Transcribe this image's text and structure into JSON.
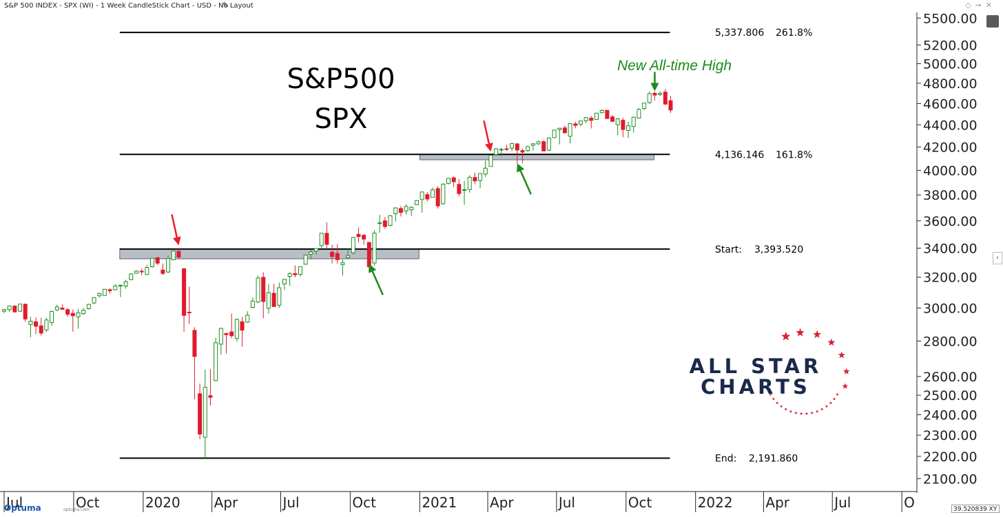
{
  "window": {
    "title": "S&P 500 INDEX - SPX (WI) - 1 Week CandleStick Chart - USD - No Layout",
    "edit_icon": "pencil-icon",
    "toolbar_icons": [
      "diamond-icon",
      "pin-icon",
      "close-icon"
    ]
  },
  "chart_data": {
    "type": "candlestick",
    "title": "S&P500",
    "subtitle": "SPX",
    "y_scale": "log",
    "ylim": [
      2050,
      5550
    ],
    "y_ticks": [
      2100,
      2200,
      2300,
      2400,
      2500,
      2600,
      2800,
      3000,
      3200,
      3400,
      3600,
      3800,
      4000,
      4200,
      4400,
      4600,
      4800,
      5000,
      5200,
      5500
    ],
    "y_tick_labels": [
      "2100.00",
      "2200.00",
      "2300.00",
      "2400.00",
      "2500.00",
      "2600.00",
      "2800.00",
      "3000.00",
      "3200.00",
      "3400.00",
      "3600.00",
      "3800.00",
      "4000.00",
      "4200.00",
      "4400.00",
      "4600.00",
      "4800.00",
      "5000.00",
      "5200.00",
      "5500.00"
    ],
    "x_range": [
      "2019-07-01",
      "2022-10-20"
    ],
    "x_ticks": [
      {
        "date": "2019-07-01",
        "label": "Jul"
      },
      {
        "date": "2019-10-01",
        "label": "Oct"
      },
      {
        "date": "2020-01-01",
        "label": "2020"
      },
      {
        "date": "2020-04-01",
        "label": "Apr"
      },
      {
        "date": "2020-07-01",
        "label": "Jul"
      },
      {
        "date": "2020-10-01",
        "label": "Oct"
      },
      {
        "date": "2021-01-01",
        "label": "2021"
      },
      {
        "date": "2021-04-01",
        "label": "Apr"
      },
      {
        "date": "2021-07-01",
        "label": "Jul"
      },
      {
        "date": "2021-10-01",
        "label": "Oct"
      },
      {
        "date": "2022-01-01",
        "label": "2022"
      },
      {
        "date": "2022-04-01",
        "label": "Apr"
      },
      {
        "date": "2022-07-01",
        "label": "Jul"
      },
      {
        "date": "2022-10-01",
        "label": "O"
      }
    ],
    "grid": false,
    "colors": {
      "up": "#1e8c1e",
      "down": "#e01b2d",
      "level": "#000000",
      "zone": "#b9bec6",
      "zone_border": "#5e6470",
      "arrow_red": "#e8202a",
      "arrow_green": "#1a8a1a",
      "annotation": "#1a8a1a",
      "brand": "#1b2a4a",
      "brand_star": "#d8203a"
    },
    "levels": [
      {
        "value": 5337.806,
        "label": "5,337.806",
        "ratio": "261.8%",
        "start": "2019-12-01",
        "end": "2021-11-28"
      },
      {
        "value": 4136.146,
        "label": "4,136.146",
        "ratio": "161.8%",
        "start": "2019-12-01",
        "end": "2021-11-28"
      },
      {
        "value": 3393.52,
        "label": "3,393.520",
        "ratio": "Start:",
        "start": "2019-12-01",
        "end": "2021-11-28"
      },
      {
        "value": 2191.86,
        "label": "2,191.860",
        "ratio": "End:",
        "start": "2019-12-01",
        "end": "2021-11-28"
      }
    ],
    "zones": [
      {
        "start": "2019-12-01",
        "end": "2020-12-31",
        "low": 3325,
        "high": 3393
      },
      {
        "start": "2021-01-01",
        "end": "2021-11-07",
        "low": 4090,
        "high": 4136
      }
    ],
    "annotation": {
      "text": "New All-time High"
    },
    "arrows": [
      {
        "color": "red",
        "date": "2020-02-17",
        "value": 3420,
        "direction": "down"
      },
      {
        "color": "green",
        "date": "2020-10-26",
        "value": 3290,
        "direction": "up"
      },
      {
        "color": "red",
        "date": "2021-04-05",
        "value": 4160,
        "direction": "down"
      },
      {
        "color": "green",
        "date": "2021-05-10",
        "value": 4060,
        "direction": "up"
      },
      {
        "color": "green",
        "date": "2021-11-08",
        "value": 4720,
        "direction": "down"
      }
    ],
    "candles": [
      {
        "d": "2019-07-01",
        "o": 2980,
        "h": 2995,
        "l": 2968,
        "c": 2990
      },
      {
        "d": "2019-07-08",
        "o": 2990,
        "h": 3013,
        "l": 2975,
        "c": 3013
      },
      {
        "d": "2019-07-15",
        "o": 3012,
        "h": 3018,
        "l": 2970,
        "c": 2976
      },
      {
        "d": "2019-07-22",
        "o": 2980,
        "h": 3027,
        "l": 2975,
        "c": 3025
      },
      {
        "d": "2019-07-29",
        "o": 3024,
        "h": 3028,
        "l": 2914,
        "c": 2932
      },
      {
        "d": "2019-08-05",
        "o": 2898,
        "h": 2945,
        "l": 2822,
        "c": 2918
      },
      {
        "d": "2019-08-12",
        "o": 2915,
        "h": 2943,
        "l": 2840,
        "c": 2888
      },
      {
        "d": "2019-08-19",
        "o": 2890,
        "h": 2939,
        "l": 2834,
        "c": 2847
      },
      {
        "d": "2019-08-26",
        "o": 2866,
        "h": 2940,
        "l": 2853,
        "c": 2926
      },
      {
        "d": "2019-09-02",
        "o": 2910,
        "h": 2985,
        "l": 2891,
        "c": 2979
      },
      {
        "d": "2019-09-09",
        "o": 2988,
        "h": 3021,
        "l": 2980,
        "c": 3007
      },
      {
        "d": "2019-09-16",
        "o": 3000,
        "h": 3022,
        "l": 2990,
        "c": 2992
      },
      {
        "d": "2019-09-23",
        "o": 2990,
        "h": 2999,
        "l": 2946,
        "c": 2961
      },
      {
        "d": "2019-09-30",
        "o": 2967,
        "h": 2991,
        "l": 2855,
        "c": 2952
      },
      {
        "d": "2019-10-07",
        "o": 2945,
        "h": 2993,
        "l": 2873,
        "c": 2970
      },
      {
        "d": "2019-10-14",
        "o": 2965,
        "h": 3002,
        "l": 2959,
        "c": 2986
      },
      {
        "d": "2019-10-21",
        "o": 2996,
        "h": 3027,
        "l": 2991,
        "c": 3023
      },
      {
        "d": "2019-10-28",
        "o": 3032,
        "h": 3066,
        "l": 3023,
        "c": 3066
      },
      {
        "d": "2019-11-04",
        "o": 3078,
        "h": 3098,
        "l": 3066,
        "c": 3093
      },
      {
        "d": "2019-11-11",
        "o": 3080,
        "h": 3121,
        "l": 3078,
        "c": 3120
      },
      {
        "d": "2019-11-18",
        "o": 3117,
        "h": 3127,
        "l": 3091,
        "c": 3110
      },
      {
        "d": "2019-11-25",
        "o": 3117,
        "h": 3154,
        "l": 3113,
        "c": 3141
      },
      {
        "d": "2019-12-02",
        "o": 3143,
        "h": 3150,
        "l": 3070,
        "c": 3146
      },
      {
        "d": "2019-12-09",
        "o": 3141,
        "h": 3183,
        "l": 3123,
        "c": 3169
      },
      {
        "d": "2019-12-16",
        "o": 3183,
        "h": 3226,
        "l": 3180,
        "c": 3221
      },
      {
        "d": "2019-12-23",
        "o": 3226,
        "h": 3247,
        "l": 3222,
        "c": 3240
      },
      {
        "d": "2019-12-30",
        "o": 3240,
        "h": 3258,
        "l": 3213,
        "c": 3235
      },
      {
        "d": "2020-01-06",
        "o": 3218,
        "h": 3282,
        "l": 3214,
        "c": 3265
      },
      {
        "d": "2020-01-13",
        "o": 3271,
        "h": 3329,
        "l": 3263,
        "c": 3329
      },
      {
        "d": "2020-01-20",
        "o": 3333,
        "h": 3337,
        "l": 3281,
        "c": 3295
      },
      {
        "d": "2020-01-27",
        "o": 3248,
        "h": 3293,
        "l": 3214,
        "c": 3225
      },
      {
        "d": "2020-02-03",
        "o": 3235,
        "h": 3347,
        "l": 3226,
        "c": 3327
      },
      {
        "d": "2020-02-10",
        "o": 3318,
        "h": 3385,
        "l": 3315,
        "c": 3380
      },
      {
        "d": "2020-02-17",
        "o": 3378,
        "h": 3393,
        "l": 3328,
        "c": 3337
      },
      {
        "d": "2020-02-24",
        "o": 3257,
        "h": 3259,
        "l": 2855,
        "c": 2954
      },
      {
        "d": "2020-03-02",
        "o": 2974,
        "h": 3137,
        "l": 2901,
        "c": 2972
      },
      {
        "d": "2020-03-09",
        "o": 2863,
        "h": 2882,
        "l": 2478,
        "c": 2711
      },
      {
        "d": "2020-03-16",
        "o": 2508,
        "h": 2562,
        "l": 2280,
        "c": 2305
      },
      {
        "d": "2020-03-23",
        "o": 2290,
        "h": 2637,
        "l": 2192,
        "c": 2541
      },
      {
        "d": "2020-03-30",
        "o": 2498,
        "h": 2641,
        "l": 2447,
        "c": 2489
      },
      {
        "d": "2020-04-06",
        "o": 2578,
        "h": 2819,
        "l": 2574,
        "c": 2790
      },
      {
        "d": "2020-04-13",
        "o": 2782,
        "h": 2879,
        "l": 2721,
        "c": 2875
      },
      {
        "d": "2020-04-20",
        "o": 2845,
        "h": 2845,
        "l": 2727,
        "c": 2837
      },
      {
        "d": "2020-04-27",
        "o": 2854,
        "h": 2965,
        "l": 2816,
        "c": 2831
      },
      {
        "d": "2020-05-04",
        "o": 2815,
        "h": 2934,
        "l": 2798,
        "c": 2930
      },
      {
        "d": "2020-05-11",
        "o": 2915,
        "h": 2945,
        "l": 2767,
        "c": 2864
      },
      {
        "d": "2020-05-18",
        "o": 2913,
        "h": 2980,
        "l": 2909,
        "c": 2955
      },
      {
        "d": "2020-05-25",
        "o": 3004,
        "h": 3068,
        "l": 2998,
        "c": 3044
      },
      {
        "d": "2020-06-01",
        "o": 3038,
        "h": 3211,
        "l": 3031,
        "c": 3194
      },
      {
        "d": "2020-06-08",
        "o": 3199,
        "h": 3233,
        "l": 2936,
        "c": 3041
      },
      {
        "d": "2020-06-15",
        "o": 2999,
        "h": 3155,
        "l": 2966,
        "c": 3098
      },
      {
        "d": "2020-06-22",
        "o": 3094,
        "h": 3155,
        "l": 3007,
        "c": 3009
      },
      {
        "d": "2020-06-29",
        "o": 3018,
        "h": 3165,
        "l": 3000,
        "c": 3130
      },
      {
        "d": "2020-07-06",
        "o": 3155,
        "h": 3188,
        "l": 3115,
        "c": 3185
      },
      {
        "d": "2020-07-13",
        "o": 3205,
        "h": 3233,
        "l": 3142,
        "c": 3224
      },
      {
        "d": "2020-07-20",
        "o": 3224,
        "h": 3280,
        "l": 3199,
        "c": 3216
      },
      {
        "d": "2020-07-27",
        "o": 3219,
        "h": 3273,
        "l": 3204,
        "c": 3271
      },
      {
        "d": "2020-08-03",
        "o": 3288,
        "h": 3352,
        "l": 3284,
        "c": 3351
      },
      {
        "d": "2020-08-10",
        "o": 3356,
        "h": 3387,
        "l": 3327,
        "c": 3373
      },
      {
        "d": "2020-08-17",
        "o": 3380,
        "h": 3399,
        "l": 3354,
        "c": 3397
      },
      {
        "d": "2020-08-24",
        "o": 3418,
        "h": 3509,
        "l": 3403,
        "c": 3508
      },
      {
        "d": "2020-08-31",
        "o": 3507,
        "h": 3588,
        "l": 3403,
        "c": 3427
      },
      {
        "d": "2020-09-07",
        "o": 3371,
        "h": 3425,
        "l": 3293,
        "c": 3341
      },
      {
        "d": "2020-09-14",
        "o": 3363,
        "h": 3428,
        "l": 3292,
        "c": 3319
      },
      {
        "d": "2020-09-21",
        "o": 3285,
        "h": 3320,
        "l": 3210,
        "c": 3298
      },
      {
        "d": "2020-09-28",
        "o": 3334,
        "h": 3398,
        "l": 3324,
        "c": 3348
      },
      {
        "d": "2020-10-05",
        "o": 3367,
        "h": 3482,
        "l": 3355,
        "c": 3477
      },
      {
        "d": "2020-10-12",
        "o": 3500,
        "h": 3550,
        "l": 3440,
        "c": 3483
      },
      {
        "d": "2020-10-19",
        "o": 3493,
        "h": 3502,
        "l": 3424,
        "c": 3465
      },
      {
        "d": "2020-10-26",
        "o": 3441,
        "h": 3441,
        "l": 3234,
        "c": 3270
      },
      {
        "d": "2020-11-02",
        "o": 3296,
        "h": 3529,
        "l": 3279,
        "c": 3509
      },
      {
        "d": "2020-11-09",
        "o": 3583,
        "h": 3645,
        "l": 3511,
        "c": 3585
      },
      {
        "d": "2020-11-16",
        "o": 3600,
        "h": 3628,
        "l": 3542,
        "c": 3557
      },
      {
        "d": "2020-11-23",
        "o": 3566,
        "h": 3644,
        "l": 3559,
        "c": 3638
      },
      {
        "d": "2020-11-30",
        "o": 3654,
        "h": 3699,
        "l": 3594,
        "c": 3699
      },
      {
        "d": "2020-12-07",
        "o": 3694,
        "h": 3712,
        "l": 3633,
        "c": 3663
      },
      {
        "d": "2020-12-14",
        "o": 3675,
        "h": 3726,
        "l": 3647,
        "c": 3709
      },
      {
        "d": "2020-12-21",
        "o": 3684,
        "h": 3711,
        "l": 3636,
        "c": 3703
      },
      {
        "d": "2020-12-28",
        "o": 3723,
        "h": 3760,
        "l": 3720,
        "c": 3756
      },
      {
        "d": "2021-01-04",
        "o": 3764,
        "h": 3826,
        "l": 3662,
        "c": 3824
      },
      {
        "d": "2021-01-11",
        "o": 3803,
        "h": 3823,
        "l": 3749,
        "c": 3768
      },
      {
        "d": "2021-01-18",
        "o": 3781,
        "h": 3859,
        "l": 3780,
        "c": 3841
      },
      {
        "d": "2021-01-25",
        "o": 3851,
        "h": 3870,
        "l": 3694,
        "c": 3714
      },
      {
        "d": "2021-02-01",
        "o": 3731,
        "h": 3894,
        "l": 3725,
        "c": 3887
      },
      {
        "d": "2021-02-08",
        "o": 3892,
        "h": 3937,
        "l": 3884,
        "c": 3934
      },
      {
        "d": "2021-02-15",
        "o": 3939,
        "h": 3950,
        "l": 3865,
        "c": 3906
      },
      {
        "d": "2021-02-22",
        "o": 3885,
        "h": 3928,
        "l": 3789,
        "c": 3811
      },
      {
        "d": "2021-03-01",
        "o": 3842,
        "h": 3914,
        "l": 3723,
        "c": 3842
      },
      {
        "d": "2021-03-08",
        "o": 3844,
        "h": 3960,
        "l": 3819,
        "c": 3943
      },
      {
        "d": "2021-03-15",
        "o": 3942,
        "h": 3983,
        "l": 3886,
        "c": 3913
      },
      {
        "d": "2021-03-22",
        "o": 3916,
        "h": 3978,
        "l": 3853,
        "c": 3974
      },
      {
        "d": "2021-03-29",
        "o": 3969,
        "h": 4083,
        "l": 3944,
        "c": 4019
      },
      {
        "d": "2021-04-05",
        "o": 4034,
        "h": 4131,
        "l": 4034,
        "c": 4129
      },
      {
        "d": "2021-04-12",
        "o": 4135,
        "h": 4191,
        "l": 4123,
        "c": 4185
      },
      {
        "d": "2021-04-19",
        "o": 4179,
        "h": 4194,
        "l": 4118,
        "c": 4180
      },
      {
        "d": "2021-04-26",
        "o": 4185,
        "h": 4219,
        "l": 4167,
        "c": 4181
      },
      {
        "d": "2021-05-03",
        "o": 4191,
        "h": 4238,
        "l": 4163,
        "c": 4232
      },
      {
        "d": "2021-05-10",
        "o": 4228,
        "h": 4236,
        "l": 4057,
        "c": 4174
      },
      {
        "d": "2021-05-17",
        "o": 4169,
        "h": 4187,
        "l": 4061,
        "c": 4156
      },
      {
        "d": "2021-05-24",
        "o": 4170,
        "h": 4213,
        "l": 4156,
        "c": 4204
      },
      {
        "d": "2021-05-31",
        "o": 4216,
        "h": 4234,
        "l": 4167,
        "c": 4229
      },
      {
        "d": "2021-06-07",
        "o": 4229,
        "h": 4257,
        "l": 4218,
        "c": 4247
      },
      {
        "d": "2021-06-14",
        "o": 4248,
        "h": 4261,
        "l": 4165,
        "c": 4166
      },
      {
        "d": "2021-06-21",
        "o": 4173,
        "h": 4286,
        "l": 4164,
        "c": 4280
      },
      {
        "d": "2021-06-28",
        "o": 4284,
        "h": 4355,
        "l": 4278,
        "c": 4352
      },
      {
        "d": "2021-07-05",
        "o": 4356,
        "h": 4372,
        "l": 4224,
        "c": 4369
      },
      {
        "d": "2021-07-12",
        "o": 4372,
        "h": 4393,
        "l": 4321,
        "c": 4327
      },
      {
        "d": "2021-07-19",
        "o": 4296,
        "h": 4415,
        "l": 4233,
        "c": 4411
      },
      {
        "d": "2021-07-26",
        "o": 4409,
        "h": 4429,
        "l": 4368,
        "c": 4395
      },
      {
        "d": "2021-08-02",
        "o": 4406,
        "h": 4440,
        "l": 4385,
        "c": 4436
      },
      {
        "d": "2021-08-09",
        "o": 4437,
        "h": 4470,
        "l": 4416,
        "c": 4468
      },
      {
        "d": "2021-08-16",
        "o": 4462,
        "h": 4480,
        "l": 4367,
        "c": 4441
      },
      {
        "d": "2021-08-23",
        "o": 4450,
        "h": 4509,
        "l": 4450,
        "c": 4509
      },
      {
        "d": "2021-08-30",
        "o": 4513,
        "h": 4545,
        "l": 4508,
        "c": 4535
      },
      {
        "d": "2021-09-06",
        "o": 4536,
        "h": 4536,
        "l": 4458,
        "c": 4458
      },
      {
        "d": "2021-09-13",
        "o": 4474,
        "h": 4492,
        "l": 4427,
        "c": 4432
      },
      {
        "d": "2021-09-20",
        "o": 4402,
        "h": 4465,
        "l": 4305,
        "c": 4455
      },
      {
        "d": "2021-09-27",
        "o": 4442,
        "h": 4465,
        "l": 4288,
        "c": 4357
      },
      {
        "d": "2021-10-04",
        "o": 4348,
        "h": 4429,
        "l": 4279,
        "c": 4391
      },
      {
        "d": "2021-10-11",
        "o": 4385,
        "h": 4475,
        "l": 4329,
        "c": 4471
      },
      {
        "d": "2021-10-18",
        "o": 4463,
        "h": 4559,
        "l": 4459,
        "c": 4544
      },
      {
        "d": "2021-10-25",
        "o": 4553,
        "h": 4608,
        "l": 4537,
        "c": 4605
      },
      {
        "d": "2021-11-01",
        "o": 4610,
        "h": 4718,
        "l": 4595,
        "c": 4697
      },
      {
        "d": "2021-11-08",
        "o": 4701,
        "h": 4714,
        "l": 4630,
        "c": 4682
      },
      {
        "d": "2021-11-15",
        "o": 4689,
        "h": 4718,
        "l": 4673,
        "c": 4698
      },
      {
        "d": "2021-11-22",
        "o": 4712,
        "h": 4743,
        "l": 4585,
        "c": 4595
      },
      {
        "d": "2021-11-29",
        "o": 4628,
        "h": 4672,
        "l": 4510,
        "c": 4538
      }
    ]
  },
  "brand": {
    "line1": "ALL STAR",
    "line2": "CHARTS"
  },
  "footer": {
    "logo": "Optuma",
    "site": "optuma.com",
    "scale_readout": "39.520839",
    "scale_suffix": "XY"
  }
}
